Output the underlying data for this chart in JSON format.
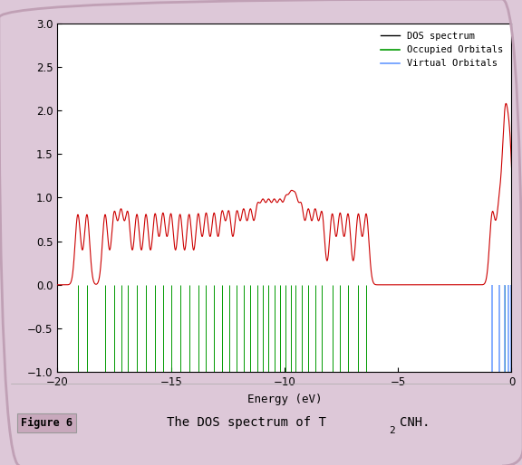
{
  "xlabel": "Energy (eV)",
  "xlim": [
    -20,
    0
  ],
  "ylim": [
    -1,
    3
  ],
  "yticks": [
    -1,
    -0.5,
    0,
    0.5,
    1,
    1.5,
    2,
    2.5,
    3
  ],
  "xticks": [
    -20,
    -15,
    -10,
    -5,
    0
  ],
  "dos_color": "#cc0000",
  "occupied_color": "#009900",
  "virtual_color": "#6699ff",
  "background_color": "#ffffff",
  "legend_labels": [
    "DOS spectrum",
    "Occupied Orbitals",
    "Virtual Orbitals"
  ],
  "occupied_orbitals": [
    -19.1,
    -18.7,
    -17.9,
    -17.5,
    -17.2,
    -16.9,
    -16.5,
    -16.1,
    -15.7,
    -15.35,
    -15.0,
    -14.6,
    -14.2,
    -13.8,
    -13.45,
    -13.1,
    -12.75,
    -12.45,
    -12.1,
    -11.8,
    -11.5,
    -11.2,
    -10.95,
    -10.7,
    -10.45,
    -10.2,
    -9.95,
    -9.72,
    -9.5,
    -9.25,
    -8.95,
    -8.65,
    -8.35,
    -7.9,
    -7.55,
    -7.2,
    -6.75,
    -6.4,
    -0.3
  ],
  "virtual_orbitals": [
    -0.85,
    -0.55,
    -0.3,
    -0.12,
    -0.02
  ],
  "sigma": 0.12,
  "peak_scale": 2.08,
  "fig_bg": "#ddc8d8",
  "border_color": "#c0a0b5",
  "caption_bg": "#c8a8bc"
}
